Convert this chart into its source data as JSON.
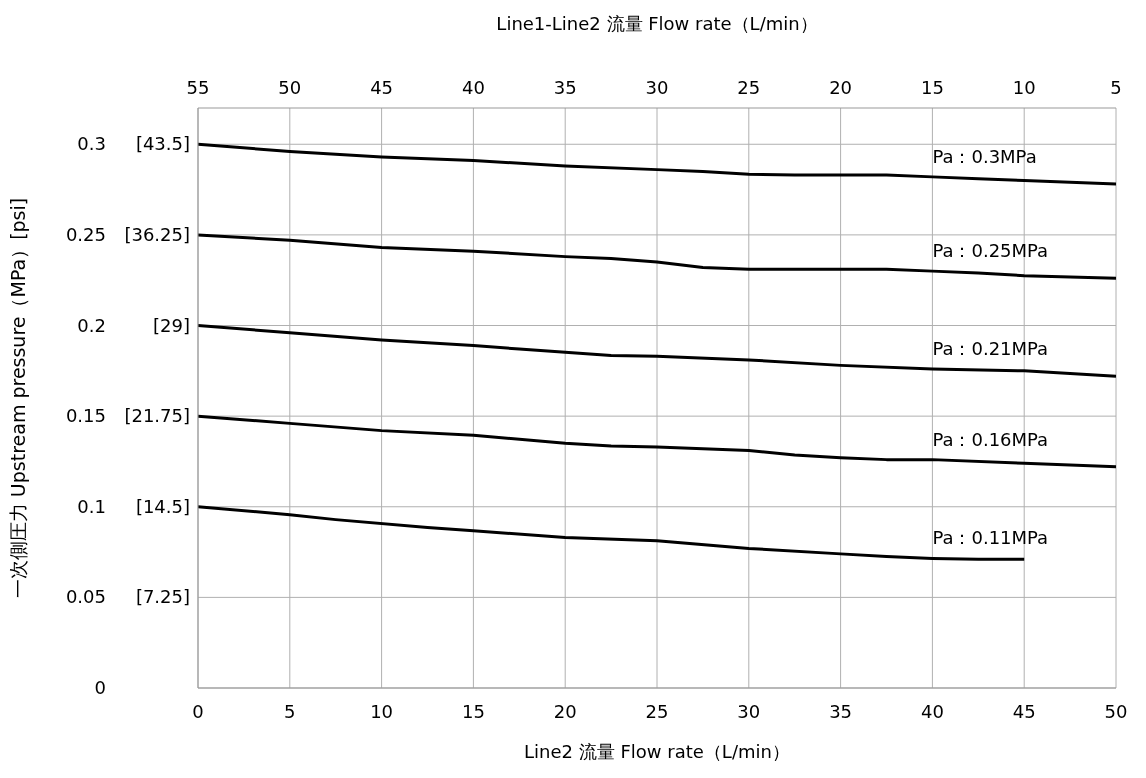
{
  "chart_data": {
    "type": "line",
    "xlabel": "Line2 流量  Flow rate（L/min）",
    "x2label": "Line1-Line2 流量  Flow rate（L/min）",
    "ylabel": "一次側圧力  Upstream pressure（MPa）[psi]",
    "xlim": [
      0,
      50
    ],
    "xticks": [
      0,
      5,
      10,
      15,
      20,
      25,
      30,
      35,
      40,
      45,
      50
    ],
    "x2lim": [
      55,
      5
    ],
    "x2ticks": [
      55,
      50,
      45,
      40,
      35,
      30,
      25,
      20,
      15,
      10,
      5
    ],
    "ylim": [
      0,
      0.32
    ],
    "yticks": [
      0,
      0.05,
      0.1,
      0.15,
      0.2,
      0.25,
      0.3
    ],
    "y2lim": [
      0,
      46.4
    ],
    "y2ticks": [
      {
        "value": 7.25,
        "label": "[7.25]"
      },
      {
        "value": 14.5,
        "label": "[14.5]"
      },
      {
        "value": 21.75,
        "label": "[21.75]"
      },
      {
        "value": 29,
        "label": "[29]"
      },
      {
        "value": 36.25,
        "label": "[36.25]"
      },
      {
        "value": 43.5,
        "label": "[43.5]"
      }
    ],
    "grid": true,
    "legend": false,
    "marker": "none",
    "line_style": "solid",
    "series": [
      {
        "name": "Pa：0.3MPa",
        "color": "#000000",
        "x": [
          0,
          5,
          10,
          15,
          20,
          25,
          27.5,
          30,
          32.5,
          37.5,
          40,
          42.5,
          45,
          50
        ],
        "values": [
          0.3,
          0.296,
          0.293,
          0.291,
          0.288,
          0.286,
          0.285,
          0.2835,
          0.283,
          0.283,
          0.282,
          0.281,
          0.28,
          0.278
        ]
      },
      {
        "name": "Pa：0.25MPa",
        "color": "#000000",
        "x": [
          0,
          5,
          10,
          15,
          20,
          22.5,
          25,
          27.5,
          30,
          37.5,
          40,
          42.5,
          45,
          50
        ],
        "values": [
          0.25,
          0.247,
          0.243,
          0.241,
          0.238,
          0.237,
          0.235,
          0.232,
          0.231,
          0.231,
          0.23,
          0.229,
          0.2275,
          0.226
        ]
      },
      {
        "name": "Pa：0.21MPa",
        "color": "#000000",
        "x": [
          0,
          5,
          10,
          15,
          17.5,
          22.5,
          25,
          30,
          35,
          40,
          45,
          50
        ],
        "values": [
          0.2,
          0.196,
          0.192,
          0.189,
          0.187,
          0.1835,
          0.183,
          0.181,
          0.178,
          0.176,
          0.175,
          0.172
        ]
      },
      {
        "name": "Pa：0.16MPa",
        "color": "#000000",
        "x": [
          0,
          5,
          10,
          15,
          20,
          22.5,
          25,
          30,
          32.5,
          35,
          37.5,
          40,
          45,
          50
        ],
        "values": [
          0.15,
          0.146,
          0.142,
          0.1395,
          0.135,
          0.1335,
          0.133,
          0.131,
          0.1285,
          0.127,
          0.126,
          0.126,
          0.124,
          0.122
        ]
      },
      {
        "name": "Pa：0.11MPa",
        "color": "#000000",
        "x": [
          0,
          5,
          7.5,
          12.5,
          15,
          20,
          25,
          30,
          35,
          37.5,
          40,
          42.5,
          45
        ],
        "values": [
          0.1,
          0.0956,
          0.0929,
          0.0885,
          0.0868,
          0.083,
          0.0813,
          0.077,
          0.074,
          0.0725,
          0.0715,
          0.071,
          0.071
        ]
      }
    ]
  }
}
